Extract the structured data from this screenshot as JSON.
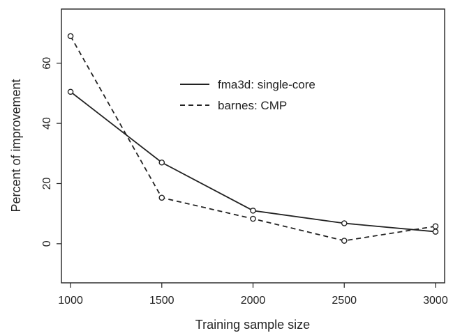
{
  "chart_data": {
    "type": "line",
    "xlabel": "Training sample size",
    "ylabel": "Percent of improvement",
    "x": [
      1000,
      1500,
      2000,
      2500,
      3000
    ],
    "xlim": [
      950,
      3050
    ],
    "ylim": [
      -13,
      78
    ],
    "xticks": [
      "1000",
      "1500",
      "2000",
      "2500",
      "3000"
    ],
    "yticks": [
      "0",
      "20",
      "40",
      "60"
    ],
    "grid": false,
    "legend_position": "upper-middle",
    "series": [
      {
        "name": "fma3d: single-core",
        "line_style": "solid",
        "color": "#222222",
        "values": [
          50.5,
          27,
          11,
          6.8,
          4
        ]
      },
      {
        "name": "barnes: CMP",
        "line_style": "dashed",
        "color": "#222222",
        "values": [
          69,
          15.3,
          8.3,
          1,
          5.8
        ]
      }
    ]
  }
}
